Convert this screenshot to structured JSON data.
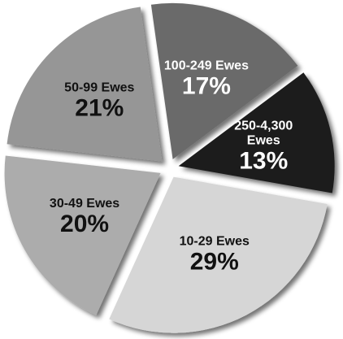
{
  "chart_data": {
    "type": "pie",
    "title": "",
    "legend": "none",
    "exploded": true,
    "categories": [
      "100-249 Ewes",
      "250-4,300 Ewes",
      "10-29 Ewes",
      "30-49 Ewes",
      "50-99 Ewes"
    ],
    "values": [
      17,
      13,
      29,
      20,
      21
    ],
    "labels": [
      "17%",
      "13%",
      "29%",
      "20%",
      "21%"
    ],
    "colors": [
      "#6b6b6b",
      "#1e1e1e",
      "#d6d6d6",
      "#acacac",
      "#969696"
    ],
    "label_colors": [
      "#ffffff",
      "#ffffff",
      "#111111",
      "#111111",
      "#111111"
    ]
  }
}
